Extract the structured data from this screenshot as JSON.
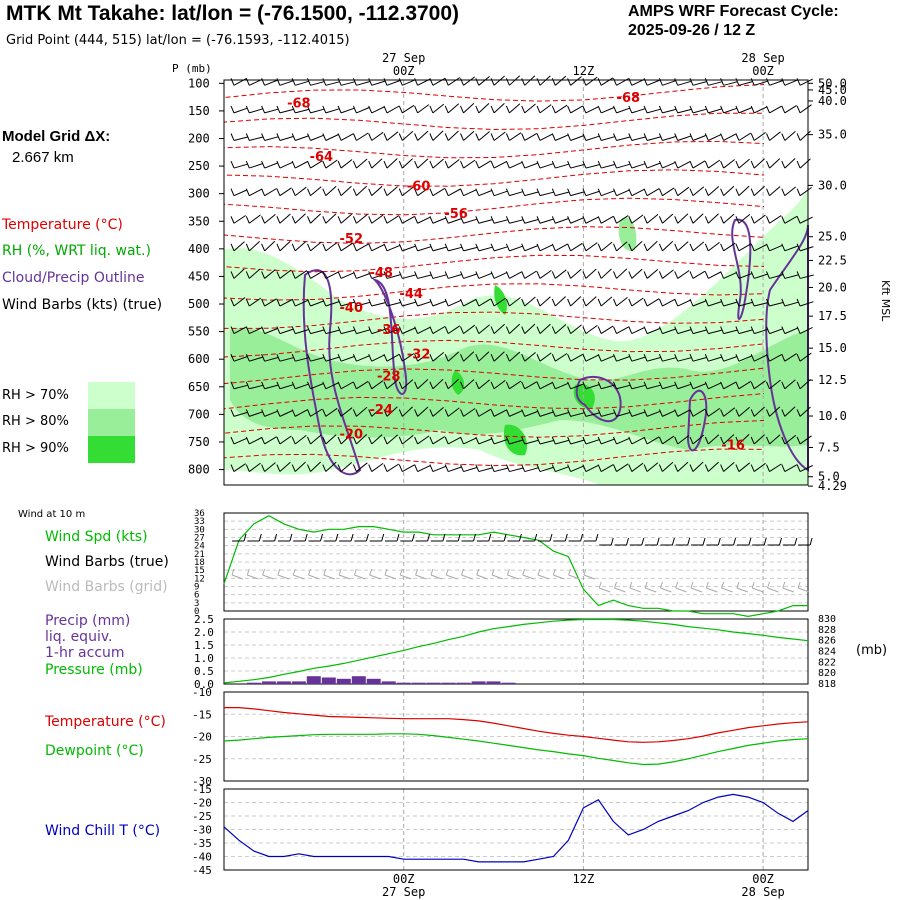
{
  "header": {
    "title": "MTK Mt Takahe:  lat/lon = (-76.1500, -112.3700)",
    "subtitle": "Grid Point (444, 515) lat/lon = (-76.1593, -112.4015)",
    "cycle_line1": "AMPS WRF Forecast Cycle:",
    "cycle_line2": "2025-09-26 / 12  Z"
  },
  "model_grid": {
    "label": "Model Grid ΔX:",
    "value": "2.667 km"
  },
  "legend_upper": {
    "temperature": "Temperature (°C)",
    "rh": "RH (%, WRT liq. wat.)",
    "cloud": "Cloud/Precip Outline",
    "wind": "Wind Barbs (kts) (true)",
    "rh70": "RH > 70%",
    "rh80": "RH > 80%",
    "rh90": "RH > 90%"
  },
  "legend_wind": {
    "title": "Wind at 10 m",
    "speed": "Wind Spd (kts)",
    "barbs_true": "Wind Barbs (true)",
    "barbs_grid": "Wind Barbs (grid)"
  },
  "legend_precip": {
    "precip": "Precip (mm)",
    "liq": "liq. equiv.",
    "accum": "1-hr accum",
    "pressure": "Pressure (mb)"
  },
  "legend_temp": {
    "temperature": "Temperature (°C)",
    "dewpoint": "Dewpoint (°C)"
  },
  "legend_chill": {
    "chill": "Wind Chill T (°C)"
  },
  "colors": {
    "temperature": "#dd0000",
    "rh70": "#ccffcc",
    "rh80": "#99ee99",
    "rh90": "#33dd33",
    "cloud": "#663399",
    "speed": "#00bb00",
    "grid_barbs": "#aaaaaa",
    "precip": "#663399",
    "pressure": "#00bb00",
    "dewpoint": "#00bb00",
    "chill": "#0000bb"
  },
  "chart_data": [
    {
      "type": "heatmap",
      "name": "time-height cross section",
      "p_label": "P (mb)",
      "right_label": "Kft MSL",
      "pressure_ticks": [
        "100",
        "150",
        "200",
        "250",
        "300",
        "350",
        "400",
        "450",
        "500",
        "550",
        "600",
        "650",
        "700",
        "750",
        "800"
      ],
      "kft_ticks": [
        {
          "label": "50.0",
          "p": 100
        },
        {
          "label": "45.0",
          "p": 112
        },
        {
          "label": "40.0",
          "p": 132
        },
        {
          "label": "35.0",
          "p": 193
        },
        {
          "label": "30.0",
          "p": 285
        },
        {
          "label": "25.0",
          "p": 378
        },
        {
          "label": "22.5",
          "p": 421
        },
        {
          "label": "20.0",
          "p": 470
        },
        {
          "label": "17.5",
          "p": 522
        },
        {
          "label": "15.0",
          "p": 580
        },
        {
          "label": "12.5",
          "p": 638
        },
        {
          "label": "10.0",
          "p": 703
        },
        {
          "label": "7.5",
          "p": 760
        },
        {
          "label": "5.0",
          "p": 813
        },
        {
          "label": "4.29",
          "p": 830
        }
      ],
      "time_top_labels": [
        {
          "label": "27 Sep",
          "h": 12,
          "row": 0
        },
        {
          "label": "00Z",
          "h": 12,
          "row": 1
        },
        {
          "label": "12Z",
          "h": 24,
          "row": 1
        },
        {
          "label": "28 Sep",
          "h": 36,
          "row": 0
        },
        {
          "label": "00Z",
          "h": 36,
          "row": 1
        }
      ],
      "temperature_labels": [
        {
          "value": "-68",
          "h": 5,
          "p": 135
        },
        {
          "value": "-68",
          "h": 27,
          "p": 125
        },
        {
          "value": "-64",
          "h": 6.5,
          "p": 232
        },
        {
          "value": "-60",
          "h": 13,
          "p": 285
        },
        {
          "value": "-56",
          "h": 15.5,
          "p": 335
        },
        {
          "value": "-52",
          "h": 8.5,
          "p": 380
        },
        {
          "value": "-48",
          "h": 10.5,
          "p": 442
        },
        {
          "value": "-44",
          "h": 12.5,
          "p": 480
        },
        {
          "value": "-40",
          "h": 8.5,
          "p": 505
        },
        {
          "value": "-36",
          "h": 11,
          "p": 545
        },
        {
          "value": "-32",
          "h": 13,
          "p": 590
        },
        {
          "value": "-28",
          "h": 11,
          "p": 630
        },
        {
          "value": "-24",
          "h": 10.5,
          "p": 690
        },
        {
          "value": "-20",
          "h": 8.5,
          "p": 735
        },
        {
          "value": "-16",
          "h": 34,
          "p": 755
        }
      ]
    },
    {
      "type": "line",
      "name": "wind speed 10 m",
      "x_range_h": [
        0,
        39
      ],
      "y_ticks": [
        "0",
        "3",
        "6",
        "9",
        "12",
        "15",
        "18",
        "21",
        "24",
        "27",
        "30",
        "33",
        "36"
      ],
      "ylim": [
        0,
        36
      ],
      "x": [
        0,
        1,
        2,
        3,
        4,
        5,
        6,
        7,
        8,
        9,
        10,
        11,
        12,
        13,
        14,
        15,
        16,
        17,
        18,
        19,
        20,
        21,
        22,
        23,
        24,
        25,
        26,
        27,
        28,
        29,
        30,
        31,
        32,
        33,
        34,
        35,
        36,
        37,
        38,
        39
      ],
      "speed": [
        10,
        26,
        32,
        35,
        32,
        30,
        29,
        30,
        30,
        31,
        31,
        30,
        29,
        29,
        28,
        28,
        28,
        28,
        29,
        28,
        27,
        26,
        22,
        20,
        8,
        2,
        4,
        2,
        1,
        1,
        0,
        0,
        -1,
        -1,
        -1,
        -2,
        -1,
        0,
        2,
        2
      ]
    },
    {
      "type": "bar",
      "name": "precip and pressure",
      "left_ticks": [
        "0.0",
        "0.5",
        "1.0",
        "1.5",
        "2.0",
        "2.5"
      ],
      "right_ticks": [
        "818",
        "820",
        "822",
        "824",
        "826",
        "828",
        "830"
      ],
      "x": [
        0,
        1,
        2,
        3,
        4,
        5,
        6,
        7,
        8,
        9,
        10,
        11,
        12,
        13,
        14,
        15,
        16,
        17,
        18,
        19,
        20,
        21,
        22,
        23,
        24,
        25,
        26,
        27,
        28,
        29,
        30,
        31,
        32,
        33,
        34,
        35,
        36,
        37,
        38,
        39
      ],
      "precip_mm": [
        0,
        0,
        0.05,
        0.1,
        0.1,
        0.1,
        0.3,
        0.25,
        0.2,
        0.3,
        0.2,
        0.1,
        0.05,
        0.05,
        0.05,
        0.05,
        0.05,
        0.1,
        0.1,
        0.05,
        0,
        0,
        0,
        0,
        0,
        0,
        0,
        0,
        0,
        0,
        0,
        0,
        0,
        0,
        0,
        0,
        0,
        0,
        0,
        0
      ],
      "pressure_mb": [
        818.2,
        818.5,
        818.8,
        819.2,
        819.8,
        820.3,
        820.9,
        821.3,
        821.8,
        822.4,
        823.0,
        823.6,
        824.2,
        824.9,
        825.5,
        826.2,
        826.8,
        827.6,
        828.2,
        828.6,
        829.0,
        829.3,
        829.6,
        829.8,
        829.9,
        829.9,
        829.9,
        829.8,
        829.6,
        829.3,
        829.0,
        828.6,
        828.3,
        828.0,
        827.6,
        827.3,
        827.0,
        826.6,
        826.3,
        826.0
      ]
    },
    {
      "type": "line",
      "name": "temperature and dewpoint",
      "y_ticks": [
        "-10",
        "-15",
        "-20",
        "-25",
        "-30"
      ],
      "ylim": [
        -30,
        -10
      ],
      "x": [
        0,
        1,
        2,
        3,
        4,
        5,
        6,
        7,
        8,
        9,
        10,
        11,
        12,
        13,
        14,
        15,
        16,
        17,
        18,
        19,
        20,
        21,
        22,
        23,
        24,
        25,
        26,
        27,
        28,
        29,
        30,
        31,
        32,
        33,
        34,
        35,
        36,
        37,
        38,
        39
      ],
      "temperature": [
        -13.5,
        -13.5,
        -13.8,
        -14.2,
        -14.6,
        -14.9,
        -15.2,
        -15.5,
        -15.6,
        -15.7,
        -15.8,
        -15.9,
        -16.0,
        -16.0,
        -16.0,
        -16.0,
        -16.2,
        -16.5,
        -17.0,
        -17.6,
        -18.2,
        -18.8,
        -19.3,
        -19.7,
        -20.0,
        -20.4,
        -20.8,
        -21.2,
        -21.3,
        -21.2,
        -20.9,
        -20.5,
        -19.9,
        -19.2,
        -18.6,
        -18.0,
        -17.6,
        -17.2,
        -16.9,
        -16.7
      ],
      "dewpoint": [
        -21.0,
        -20.8,
        -20.5,
        -20.2,
        -20.0,
        -19.8,
        -19.6,
        -19.5,
        -19.5,
        -19.5,
        -19.5,
        -19.4,
        -19.4,
        -19.5,
        -19.8,
        -20.2,
        -20.6,
        -21.0,
        -21.5,
        -22.0,
        -22.5,
        -23.0,
        -23.4,
        -23.9,
        -24.3,
        -24.9,
        -25.4,
        -25.9,
        -26.3,
        -26.2,
        -25.7,
        -25.0,
        -24.2,
        -23.4,
        -22.7,
        -22.0,
        -21.5,
        -21.0,
        -20.7,
        -20.5
      ]
    },
    {
      "type": "line",
      "name": "wind chill",
      "y_ticks": [
        "-15",
        "-20",
        "-25",
        "-30",
        "-35",
        "-40",
        "-45"
      ],
      "ylim": [
        -45,
        -15
      ],
      "x": [
        0,
        1,
        2,
        3,
        4,
        5,
        6,
        7,
        8,
        9,
        10,
        11,
        12,
        13,
        14,
        15,
        16,
        17,
        18,
        19,
        20,
        21,
        22,
        23,
        24,
        25,
        26,
        27,
        28,
        29,
        30,
        31,
        32,
        33,
        34,
        35,
        36,
        37,
        38,
        39
      ],
      "wind_chill": [
        -29,
        -34,
        -38,
        -40,
        -40,
        -39,
        -40,
        -40,
        -40,
        -40,
        -40,
        -40,
        -41,
        -41,
        -41,
        -41,
        -41,
        -42,
        -42,
        -42,
        -42,
        -41,
        -40,
        -34,
        -22,
        -19,
        -27,
        -32,
        -30,
        -27,
        -25,
        -23,
        -20,
        -18,
        -17,
        -18,
        -20,
        -24,
        -27,
        -23
      ]
    }
  ],
  "bottom_axis": [
    {
      "label": "00Z",
      "h": 12,
      "row": 0
    },
    {
      "label": "27 Sep",
      "h": 12,
      "row": 1
    },
    {
      "label": "12Z",
      "h": 24,
      "row": 0
    },
    {
      "label": "00Z",
      "h": 36,
      "row": 0
    },
    {
      "label": "28 Sep",
      "h": 36,
      "row": 1
    }
  ]
}
